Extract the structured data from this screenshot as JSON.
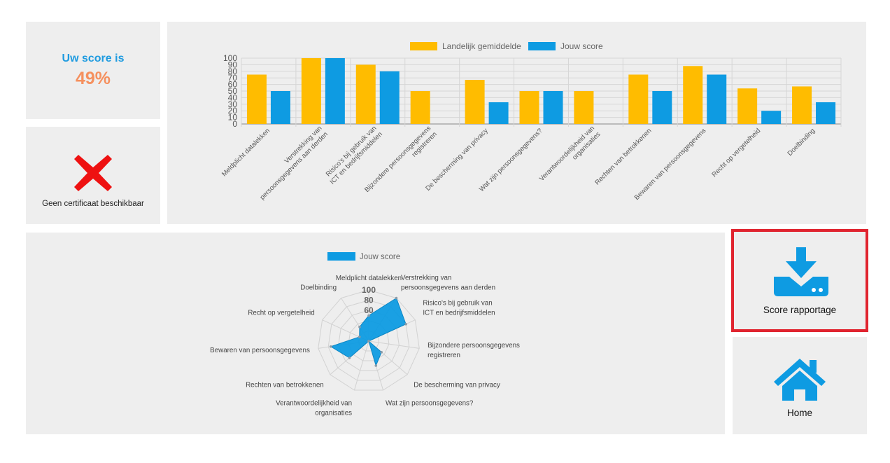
{
  "score": {
    "label": "Uw score is",
    "value": "49%"
  },
  "certificate": {
    "label": "Geen certificaat beschikbaar",
    "icon": "cross-icon"
  },
  "buttons": {
    "report": {
      "label": "Score rapportage",
      "icon": "download-icon"
    },
    "home": {
      "label": "Home",
      "icon": "home-icon"
    }
  },
  "colors": {
    "national": "#ffbc00",
    "user": "#0e9be2",
    "score_label": "#1e9be0",
    "score_value": "#f5905e",
    "cross": "#ee1111",
    "highlight_border": "#e0242f"
  },
  "chart_data": [
    {
      "type": "bar",
      "title": "",
      "legend_position": "top",
      "categories": [
        [
          "Meldplicht datalekken"
        ],
        [
          "Verstrekking van",
          "persoonsgegevens aan derden"
        ],
        [
          "Risico's bij gebruik van",
          "ICT en bedrijfsmiddelen"
        ],
        [
          "Bijzondere persoonsgegevens",
          "registreren"
        ],
        [
          "De bescherming van privacy"
        ],
        [
          "Wat zijn persoonsgegevens?"
        ],
        [
          "Verantwoordelijkheid van",
          "organisaties"
        ],
        [
          "Rechten van betrokkenen"
        ],
        [
          "Bewaren van persoonsgegevens"
        ],
        [
          "Recht op vergetelheid"
        ],
        [
          "Doelbinding"
        ]
      ],
      "series": [
        {
          "name": "Landelijk gemiddelde",
          "values": [
            75,
            100,
            90,
            50,
            67,
            50,
            50,
            75,
            88,
            54,
            57
          ]
        },
        {
          "name": "Jouw score",
          "values": [
            50,
            100,
            80,
            0,
            33,
            50,
            0,
            50,
            75,
            20,
            33
          ]
        }
      ],
      "ylim": [
        0,
        100
      ],
      "yticks": [
        0,
        10,
        20,
        30,
        40,
        50,
        60,
        70,
        80,
        90,
        100
      ],
      "grid": true,
      "xlabel": "",
      "ylabel": ""
    },
    {
      "type": "radar",
      "title": "",
      "legend_position": "top",
      "categories": [
        [
          "Meldplicht datalekken"
        ],
        [
          "Verstrekking van",
          "persoonsgegevens aan derden"
        ],
        [
          "Risico's bij gebruik van",
          "ICT en bedrijfsmiddelen"
        ],
        [
          "Bijzondere persoonsgegevens",
          "registreren"
        ],
        [
          "De bescherming van privacy"
        ],
        [
          "Wat zijn persoonsgegevens?"
        ],
        [
          "Verantwoordelijkheid van",
          "organisaties"
        ],
        [
          "Rechten van betrokkenen"
        ],
        [
          "Bewaren van persoonsgegevens"
        ],
        [
          "Recht op vergetelheid"
        ],
        [
          "Doelbinding"
        ]
      ],
      "series": [
        {
          "name": "Jouw score",
          "values": [
            50,
            100,
            80,
            0,
            33,
            50,
            0,
            50,
            75,
            20,
            33
          ]
        }
      ],
      "ticks": [
        "60",
        "80",
        "100"
      ],
      "rmax": 100
    }
  ]
}
